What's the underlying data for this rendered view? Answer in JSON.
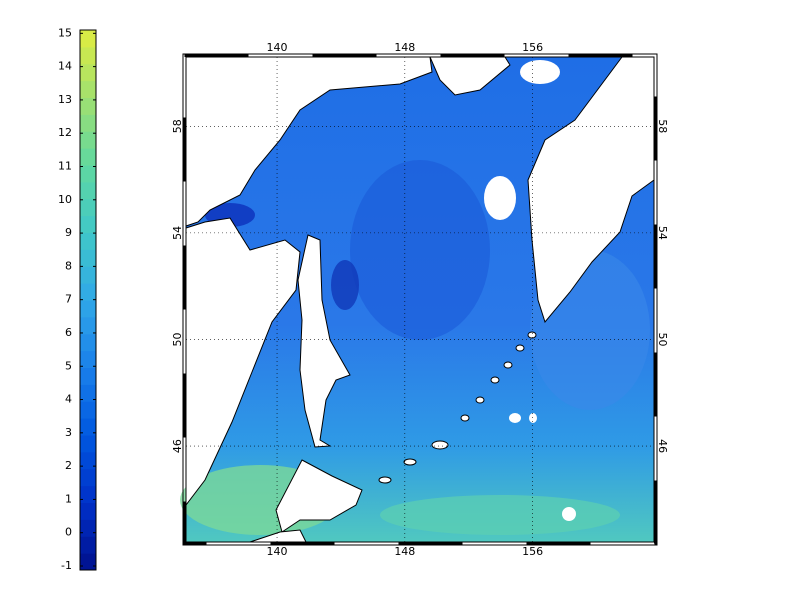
{
  "colorbar": {
    "ylim": [
      -1.12,
      15.1
    ],
    "ticks": [
      -1,
      0,
      1,
      2,
      3,
      4,
      5,
      6,
      7,
      8,
      9,
      10,
      11,
      12,
      13,
      14,
      15
    ],
    "colors": [
      "#00108c",
      "#0030c8",
      "#0058e0",
      "#1a80ea",
      "#30a8e8",
      "#40c8c8",
      "#60d8a0",
      "#a0e070",
      "#e0ec40"
    ]
  },
  "map": {
    "xlim": [
      134.3,
      163.6
    ],
    "ylim": [
      42.4,
      60.6
    ],
    "xticks": [
      140,
      148,
      156
    ],
    "yticks": [
      46,
      50,
      54,
      58
    ]
  }
}
